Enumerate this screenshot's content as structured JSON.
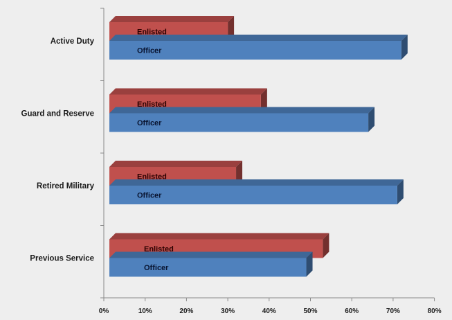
{
  "chart_data": {
    "type": "bar",
    "orientation": "horizontal",
    "style": "3d",
    "title": "",
    "xlabel": "",
    "ylabel": "",
    "categories": [
      "Active Duty",
      "Guard and Reserve",
      "Retired Military",
      "Previous Service"
    ],
    "series": [
      {
        "name": "Enlisted",
        "values": [
          0.3,
          0.38,
          0.32,
          0.53
        ],
        "color": "#c0504d",
        "label_color": "#2a0000"
      },
      {
        "name": "Officer",
        "values": [
          0.72,
          0.64,
          0.71,
          0.49
        ],
        "color": "#4f81bd",
        "label_color": "#0a1633"
      }
    ],
    "xlim": [
      0,
      0.8
    ],
    "x_ticks": [
      "0%",
      "10%",
      "20%",
      "30%",
      "40%",
      "50%",
      "60%",
      "70%",
      "80%"
    ],
    "grid": false,
    "legend": "none (series names printed on bars)"
  }
}
